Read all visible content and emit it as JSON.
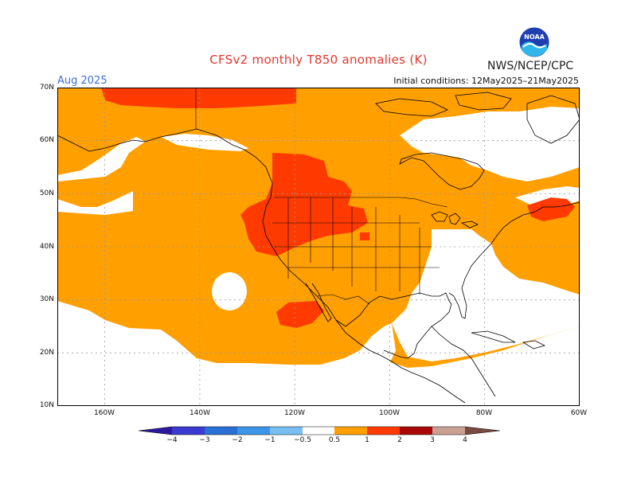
{
  "title": "CFSv2 monthly T850 anomalies (K)",
  "agency": "NWS/NCEP/CPC",
  "month": "Aug 2025",
  "initial_conditions": "Initial conditions: 12May2025–21May2025",
  "logo_text": "NOAA",
  "map": {
    "lon_range": [
      -170,
      -60
    ],
    "lat_range": [
      10,
      70
    ],
    "lat_labels": [
      "70N",
      "60N",
      "50N",
      "40N",
      "30N",
      "20N",
      "10N"
    ],
    "lon_labels": [
      "160W",
      "140W",
      "120W",
      "100W",
      "80W",
      "60W"
    ],
    "colors": {
      "land": "#ffffff",
      "coast": "#000000",
      "anom_0p5_1": "#ff9f00",
      "anom_1_2": "#ff3a00",
      "grid": "#9a9a9a"
    }
  },
  "colorbar": {
    "labels": [
      "−4",
      "−3",
      "−2",
      "−1",
      "−0.5",
      "0.5",
      "1",
      "2",
      "3",
      "4"
    ],
    "colors": [
      "#2a1a9e",
      "#3a3ad0",
      "#2a6fd4",
      "#3c95e8",
      "#77bff3",
      "#ffffff",
      "#ff9f00",
      "#ff3a00",
      "#cc1111",
      "#8a0606",
      "#c8a194",
      "#7a4a40"
    ]
  }
}
